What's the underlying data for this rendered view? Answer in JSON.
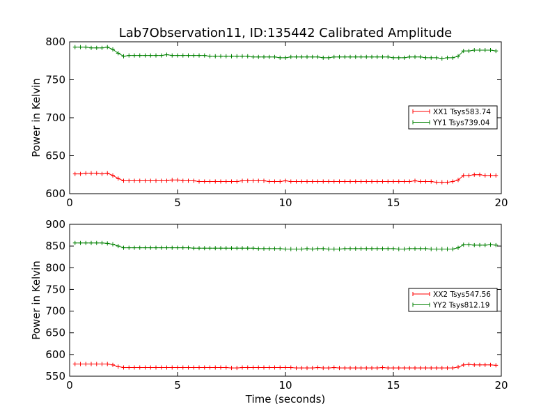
{
  "figure": {
    "title": "Lab7Observation11, ID:135442 Calibrated Amplitude",
    "colors": {
      "XX": "#ff0000",
      "YY": "#008000",
      "axes": "#000000",
      "background": "#ffffff"
    }
  },
  "chart_data": [
    {
      "type": "line",
      "xlabel": "",
      "ylabel": "Power in Kelvin",
      "xlim": [
        0,
        20
      ],
      "ylim": [
        600,
        800
      ],
      "xticks": [
        0,
        5,
        10,
        15,
        20
      ],
      "yticks": [
        600,
        650,
        700,
        750,
        800
      ],
      "grid": false,
      "legend_position": "center-right",
      "x": [
        0.25,
        0.5,
        0.75,
        1.0,
        1.25,
        1.5,
        1.75,
        2.0,
        2.25,
        2.5,
        2.75,
        3.0,
        3.25,
        3.5,
        3.75,
        4.0,
        4.25,
        4.5,
        4.75,
        5.0,
        5.25,
        5.5,
        5.75,
        6.0,
        6.25,
        6.5,
        6.75,
        7.0,
        7.25,
        7.5,
        7.75,
        8.0,
        8.25,
        8.5,
        8.75,
        9.0,
        9.25,
        9.5,
        9.75,
        10.0,
        10.25,
        10.5,
        10.75,
        11.0,
        11.25,
        11.5,
        11.75,
        12.0,
        12.25,
        12.5,
        12.75,
        13.0,
        13.25,
        13.5,
        13.75,
        14.0,
        14.25,
        14.5,
        14.75,
        15.0,
        15.25,
        15.5,
        15.75,
        16.0,
        16.25,
        16.5,
        16.75,
        17.0,
        17.25,
        17.5,
        17.75,
        18.0,
        18.25,
        18.5,
        18.75,
        19.0,
        19.25,
        19.5,
        19.75
      ],
      "series": [
        {
          "name": "XX1 Tsys583.74",
          "color": "#ff0000",
          "values": [
            626,
            626,
            627,
            627,
            627,
            626,
            627,
            624,
            620,
            617,
            617,
            617,
            617,
            617,
            617,
            617,
            617,
            617,
            618,
            618,
            617,
            617,
            617,
            616,
            616,
            616,
            616,
            616,
            616,
            616,
            616,
            617,
            617,
            617,
            617,
            617,
            616,
            616,
            616,
            617,
            616,
            616,
            616,
            616,
            616,
            616,
            616,
            616,
            616,
            616,
            616,
            616,
            616,
            616,
            616,
            616,
            616,
            616,
            616,
            616,
            616,
            616,
            616,
            617,
            616,
            616,
            616,
            615,
            615,
            615,
            616,
            618,
            624,
            624,
            625,
            625,
            624,
            624,
            624
          ]
        },
        {
          "name": "YY1 Tsys739.04",
          "color": "#008000",
          "values": [
            793,
            793,
            793,
            792,
            792,
            792,
            793,
            790,
            785,
            781,
            782,
            782,
            782,
            782,
            782,
            782,
            782,
            783,
            782,
            782,
            782,
            782,
            782,
            782,
            782,
            781,
            781,
            781,
            781,
            781,
            781,
            781,
            781,
            780,
            780,
            780,
            780,
            780,
            779,
            779,
            780,
            780,
            780,
            780,
            780,
            780,
            779,
            779,
            780,
            780,
            780,
            780,
            780,
            780,
            780,
            780,
            780,
            780,
            780,
            779,
            779,
            779,
            780,
            780,
            780,
            779,
            779,
            779,
            778,
            779,
            779,
            781,
            788,
            788,
            789,
            789,
            789,
            789,
            788
          ]
        }
      ]
    },
    {
      "type": "line",
      "xlabel": "Time (seconds)",
      "ylabel": "Power in Kelvin",
      "xlim": [
        0,
        20
      ],
      "ylim": [
        550,
        900
      ],
      "xticks": [
        0,
        5,
        10,
        15,
        20
      ],
      "yticks": [
        550,
        600,
        650,
        700,
        750,
        800,
        850,
        900
      ],
      "grid": false,
      "legend_position": "center-right",
      "x": [
        0.25,
        0.5,
        0.75,
        1.0,
        1.25,
        1.5,
        1.75,
        2.0,
        2.25,
        2.5,
        2.75,
        3.0,
        3.25,
        3.5,
        3.75,
        4.0,
        4.25,
        4.5,
        4.75,
        5.0,
        5.25,
        5.5,
        5.75,
        6.0,
        6.25,
        6.5,
        6.75,
        7.0,
        7.25,
        7.5,
        7.75,
        8.0,
        8.25,
        8.5,
        8.75,
        9.0,
        9.25,
        9.5,
        9.75,
        10.0,
        10.25,
        10.5,
        10.75,
        11.0,
        11.25,
        11.5,
        11.75,
        12.0,
        12.25,
        12.5,
        12.75,
        13.0,
        13.25,
        13.5,
        13.75,
        14.0,
        14.25,
        14.5,
        14.75,
        15.0,
        15.25,
        15.5,
        15.75,
        16.0,
        16.25,
        16.5,
        16.75,
        17.0,
        17.25,
        17.5,
        17.75,
        18.0,
        18.25,
        18.5,
        18.75,
        19.0,
        19.25,
        19.5,
        19.75
      ],
      "series": [
        {
          "name": "XX2 Tsys547.56",
          "color": "#ff0000",
          "values": [
            578,
            578,
            578,
            578,
            578,
            578,
            578,
            576,
            572,
            570,
            570,
            570,
            570,
            570,
            570,
            570,
            570,
            570,
            570,
            570,
            570,
            570,
            570,
            570,
            570,
            570,
            570,
            570,
            570,
            569,
            569,
            570,
            570,
            570,
            570,
            570,
            570,
            570,
            570,
            570,
            570,
            569,
            569,
            569,
            569,
            570,
            569,
            569,
            570,
            569,
            569,
            569,
            569,
            569,
            569,
            569,
            569,
            570,
            569,
            569,
            569,
            569,
            569,
            569,
            569,
            569,
            569,
            569,
            569,
            569,
            569,
            571,
            576,
            577,
            576,
            576,
            576,
            576,
            575
          ]
        },
        {
          "name": "YY2 Tsys812.19",
          "color": "#008000",
          "values": [
            857,
            857,
            857,
            857,
            857,
            857,
            856,
            854,
            850,
            846,
            846,
            846,
            846,
            846,
            846,
            846,
            846,
            846,
            846,
            846,
            846,
            846,
            845,
            845,
            845,
            845,
            845,
            845,
            845,
            845,
            845,
            845,
            845,
            845,
            844,
            844,
            844,
            844,
            844,
            843,
            843,
            843,
            843,
            844,
            843,
            844,
            844,
            843,
            843,
            843,
            844,
            844,
            844,
            844,
            844,
            844,
            844,
            844,
            844,
            844,
            843,
            843,
            844,
            844,
            844,
            844,
            843,
            843,
            843,
            843,
            843,
            846,
            853,
            853,
            852,
            852,
            852,
            853,
            852
          ]
        }
      ]
    }
  ]
}
